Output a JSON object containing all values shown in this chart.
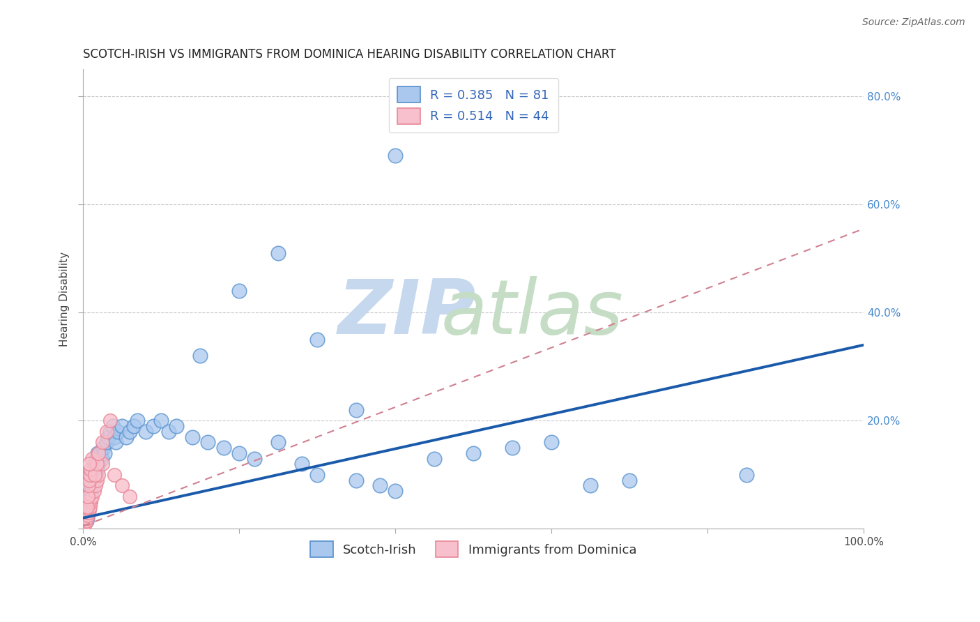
{
  "title": "SCOTCH-IRISH VS IMMIGRANTS FROM DOMINICA HEARING DISABILITY CORRELATION CHART",
  "source": "Source: ZipAtlas.com",
  "ylabel": "Hearing Disability",
  "xlim": [
    0,
    1.0
  ],
  "ylim": [
    0,
    0.85
  ],
  "xtick_labels": [
    "0.0%",
    "",
    "",
    "",
    "",
    "100.0%"
  ],
  "ytick_labels_right": [
    "",
    "20.0%",
    "40.0%",
    "60.0%",
    "80.0%"
  ],
  "legend_R1": "R = 0.385",
  "legend_N1": "N = 81",
  "legend_R2": "R = 0.514",
  "legend_N2": "N = 44",
  "color_blue_fill": "#aac8ee",
  "color_blue_edge": "#5590cc",
  "color_pink_fill": "#f8c0cc",
  "color_pink_edge": "#e88898",
  "color_blue_line": "#1a5aaa",
  "color_pink_line": "#d08090",
  "color_grid": "#c8c8cc",
  "background_color": "#ffffff",
  "title_fontsize": 12,
  "source_fontsize": 10,
  "tick_fontsize": 11,
  "legend_fontsize": 13,
  "ylabel_fontsize": 11,
  "blue_line_slope": 0.32,
  "blue_line_intercept": 0.02,
  "pink_line_slope": 0.55,
  "pink_line_intercept": 0.005,
  "scotch_irish_x": [
    0.001,
    0.002,
    0.002,
    0.002,
    0.003,
    0.003,
    0.003,
    0.003,
    0.004,
    0.004,
    0.004,
    0.004,
    0.005,
    0.005,
    0.005,
    0.006,
    0.006,
    0.006,
    0.007,
    0.007,
    0.008,
    0.008,
    0.009,
    0.009,
    0.01,
    0.01,
    0.011,
    0.012,
    0.013,
    0.014,
    0.015,
    0.016,
    0.017,
    0.018,
    0.019,
    0.02,
    0.022,
    0.024,
    0.026,
    0.028,
    0.03,
    0.032,
    0.035,
    0.038,
    0.04,
    0.042,
    0.045,
    0.05,
    0.055,
    0.06,
    0.065,
    0.07,
    0.08,
    0.09,
    0.1,
    0.11,
    0.12,
    0.14,
    0.16,
    0.18,
    0.2,
    0.22,
    0.25,
    0.28,
    0.3,
    0.35,
    0.38,
    0.4,
    0.45,
    0.5,
    0.55,
    0.6,
    0.65,
    0.7,
    0.85,
    0.15,
    0.2,
    0.25,
    0.3,
    0.35,
    0.4
  ],
  "scotch_irish_y": [
    0.01,
    0.02,
    0.03,
    0.015,
    0.025,
    0.035,
    0.02,
    0.04,
    0.03,
    0.05,
    0.015,
    0.04,
    0.035,
    0.055,
    0.02,
    0.05,
    0.03,
    0.06,
    0.04,
    0.07,
    0.05,
    0.08,
    0.06,
    0.09,
    0.07,
    0.1,
    0.08,
    0.09,
    0.1,
    0.11,
    0.12,
    0.1,
    0.13,
    0.11,
    0.14,
    0.12,
    0.14,
    0.13,
    0.15,
    0.14,
    0.16,
    0.17,
    0.18,
    0.19,
    0.17,
    0.16,
    0.18,
    0.19,
    0.17,
    0.18,
    0.19,
    0.2,
    0.18,
    0.19,
    0.2,
    0.18,
    0.19,
    0.17,
    0.16,
    0.15,
    0.14,
    0.13,
    0.16,
    0.12,
    0.1,
    0.09,
    0.08,
    0.07,
    0.13,
    0.14,
    0.15,
    0.16,
    0.08,
    0.09,
    0.1,
    0.32,
    0.44,
    0.51,
    0.35,
    0.22,
    0.69
  ],
  "dominica_x": [
    0.001,
    0.001,
    0.002,
    0.002,
    0.002,
    0.003,
    0.003,
    0.003,
    0.004,
    0.004,
    0.004,
    0.005,
    0.005,
    0.006,
    0.006,
    0.007,
    0.007,
    0.008,
    0.009,
    0.01,
    0.01,
    0.012,
    0.014,
    0.016,
    0.018,
    0.02,
    0.025,
    0.005,
    0.006,
    0.007,
    0.008,
    0.009,
    0.01,
    0.012,
    0.015,
    0.018,
    0.02,
    0.025,
    0.03,
    0.035,
    0.04,
    0.05,
    0.06,
    0.008
  ],
  "dominica_y": [
    0.005,
    0.01,
    0.008,
    0.015,
    0.02,
    0.01,
    0.015,
    0.02,
    0.015,
    0.02,
    0.025,
    0.02,
    0.03,
    0.025,
    0.035,
    0.03,
    0.04,
    0.035,
    0.04,
    0.05,
    0.055,
    0.06,
    0.07,
    0.08,
    0.09,
    0.1,
    0.12,
    0.04,
    0.06,
    0.08,
    0.09,
    0.1,
    0.11,
    0.13,
    0.1,
    0.12,
    0.14,
    0.16,
    0.18,
    0.2,
    0.1,
    0.08,
    0.06,
    0.12
  ]
}
